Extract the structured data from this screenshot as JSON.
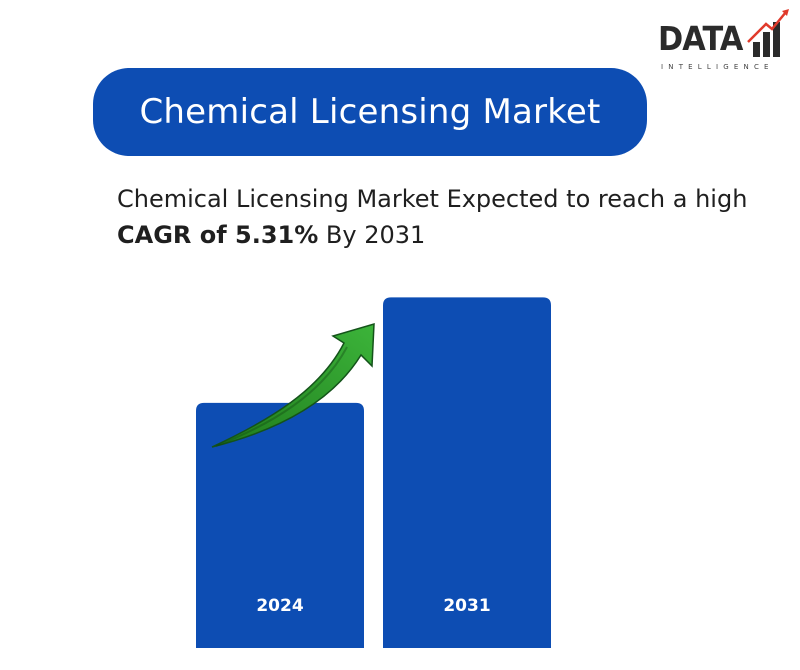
{
  "logo": {
    "word": "DATA",
    "sub": "INTELLIGENCE"
  },
  "title": "Chemical Licensing Market",
  "subtitle": {
    "prefix": "Chemical Licensing Market Expected to reach a high ",
    "bold": "CAGR of 5.31%",
    "suffix": " By 2031"
  },
  "colors": {
    "brand_blue": "#0d4db3",
    "arrow_green": "#2e9b2a",
    "logo_red": "#e03a2b"
  },
  "chart_data": {
    "type": "bar",
    "categories": [
      "2024",
      "2031"
    ],
    "values": [
      1.0,
      1.43
    ],
    "title": "Chemical Licensing Market",
    "ylim": [
      0,
      1.55
    ],
    "grid": false,
    "annotations": [
      "growth-arrow"
    ]
  }
}
